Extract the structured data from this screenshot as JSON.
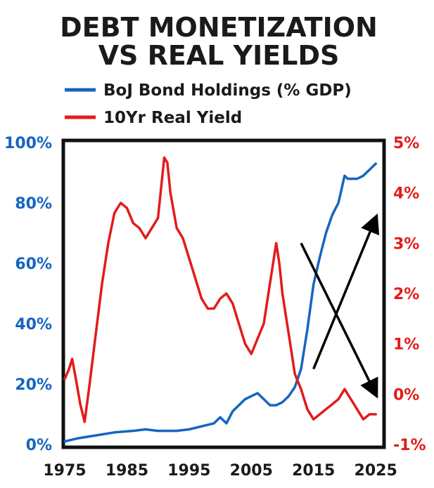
{
  "chart_data": {
    "type": "line",
    "title": [
      "DEBT MONETIZATION",
      "VS REAL YIELDS"
    ],
    "x_axis": {
      "min": 1975,
      "max": 2026,
      "ticks": [
        1975,
        1985,
        1995,
        2005,
        2015,
        2025
      ],
      "tick_labels": [
        "1975",
        "1985",
        "1995",
        "2005",
        "2015",
        "2025"
      ]
    },
    "y_left": {
      "min": 0,
      "max": 100,
      "ticks": [
        0,
        20,
        40,
        60,
        80,
        100
      ],
      "tick_labels": [
        "0%",
        "20%",
        "40%",
        "60%",
        "80%",
        "100%"
      ],
      "color": "#1565c0"
    },
    "y_right": {
      "min": -1,
      "max": 5,
      "ticks": [
        -1,
        0,
        1,
        2,
        3,
        4,
        5
      ],
      "tick_labels": [
        "-1%",
        "0%",
        "1%",
        "2%",
        "3%",
        "4%",
        "5%"
      ],
      "color": "#e31b1b"
    },
    "legend": {
      "position": "top",
      "entries": [
        {
          "label": "BoJ Bond Holdings (% GDP)",
          "color": "#1565c0"
        },
        {
          "label": "10Yr Real Yield",
          "color": "#e31b1b"
        }
      ]
    },
    "grid": false,
    "series": [
      {
        "name": "BoJ Bond Holdings (% GDP)",
        "axis": "left",
        "color": "#1565c0",
        "x": [
          1975,
          1977,
          1980,
          1983,
          1986,
          1988,
          1990,
          1993,
          1995,
          1997,
          1999,
          2000,
          2001,
          2002,
          2003,
          2004,
          2005,
          2006,
          2007,
          2008,
          2009,
          2010,
          2011,
          2012,
          2013,
          2014,
          2015,
          2016,
          2017,
          2018,
          2019,
          2020,
          2020.5,
          2021,
          2022,
          2023,
          2024,
          2025
        ],
        "y": [
          1,
          2,
          3,
          4,
          4.5,
          5,
          4.5,
          4.5,
          5,
          6,
          7,
          9,
          7,
          11,
          13,
          15,
          16,
          17,
          15,
          13,
          13,
          14,
          16,
          19,
          25,
          38,
          53,
          62,
          70,
          76,
          80,
          89,
          88,
          88,
          88,
          89,
          91,
          93
        ]
      },
      {
        "name": "10Yr Real Yield",
        "axis": "right",
        "color": "#e31b1b",
        "x": [
          1975,
          1975.7,
          1976.2,
          1976.8,
          1977.5,
          1978.2,
          1979,
          1980,
          1981,
          1982,
          1983,
          1984,
          1985,
          1986,
          1987,
          1988,
          1989,
          1990,
          1991,
          1991.5,
          1992,
          1993,
          1994,
          1995,
          1996,
          1997,
          1998,
          1999,
          2000,
          2001,
          2002,
          2003,
          2004,
          2005,
          2006,
          2007,
          2008,
          2009,
          2009.5,
          2010,
          2011,
          2012,
          2013,
          2014,
          2015,
          2016,
          2017,
          2018,
          2019,
          2020,
          2021,
          2022,
          2023,
          2024,
          2025
        ],
        "y": [
          0.3,
          0.5,
          0.7,
          0.3,
          -0.2,
          -0.55,
          0.2,
          1.2,
          2.2,
          3.0,
          3.6,
          3.8,
          3.7,
          3.4,
          3.3,
          3.1,
          3.3,
          3.5,
          4.7,
          4.6,
          4.0,
          3.3,
          3.1,
          2.7,
          2.3,
          1.9,
          1.7,
          1.7,
          1.9,
          2.0,
          1.8,
          1.4,
          1.0,
          0.8,
          1.1,
          1.4,
          2.2,
          3.0,
          2.6,
          2.0,
          1.2,
          0.4,
          0.1,
          -0.3,
          -0.5,
          -0.4,
          -0.3,
          -0.2,
          -0.1,
          0.1,
          -0.1,
          -0.3,
          -0.5,
          -0.4,
          -0.4
        ]
      }
    ],
    "annotations": [
      {
        "type": "arrow",
        "from": [
          2015,
          0.5
        ],
        "to": [
          2025,
          3.5
        ],
        "color": "#000000"
      },
      {
        "type": "arrow",
        "from": [
          2013,
          3.0
        ],
        "to": [
          2025,
          0.0
        ],
        "color": "#000000"
      }
    ]
  }
}
